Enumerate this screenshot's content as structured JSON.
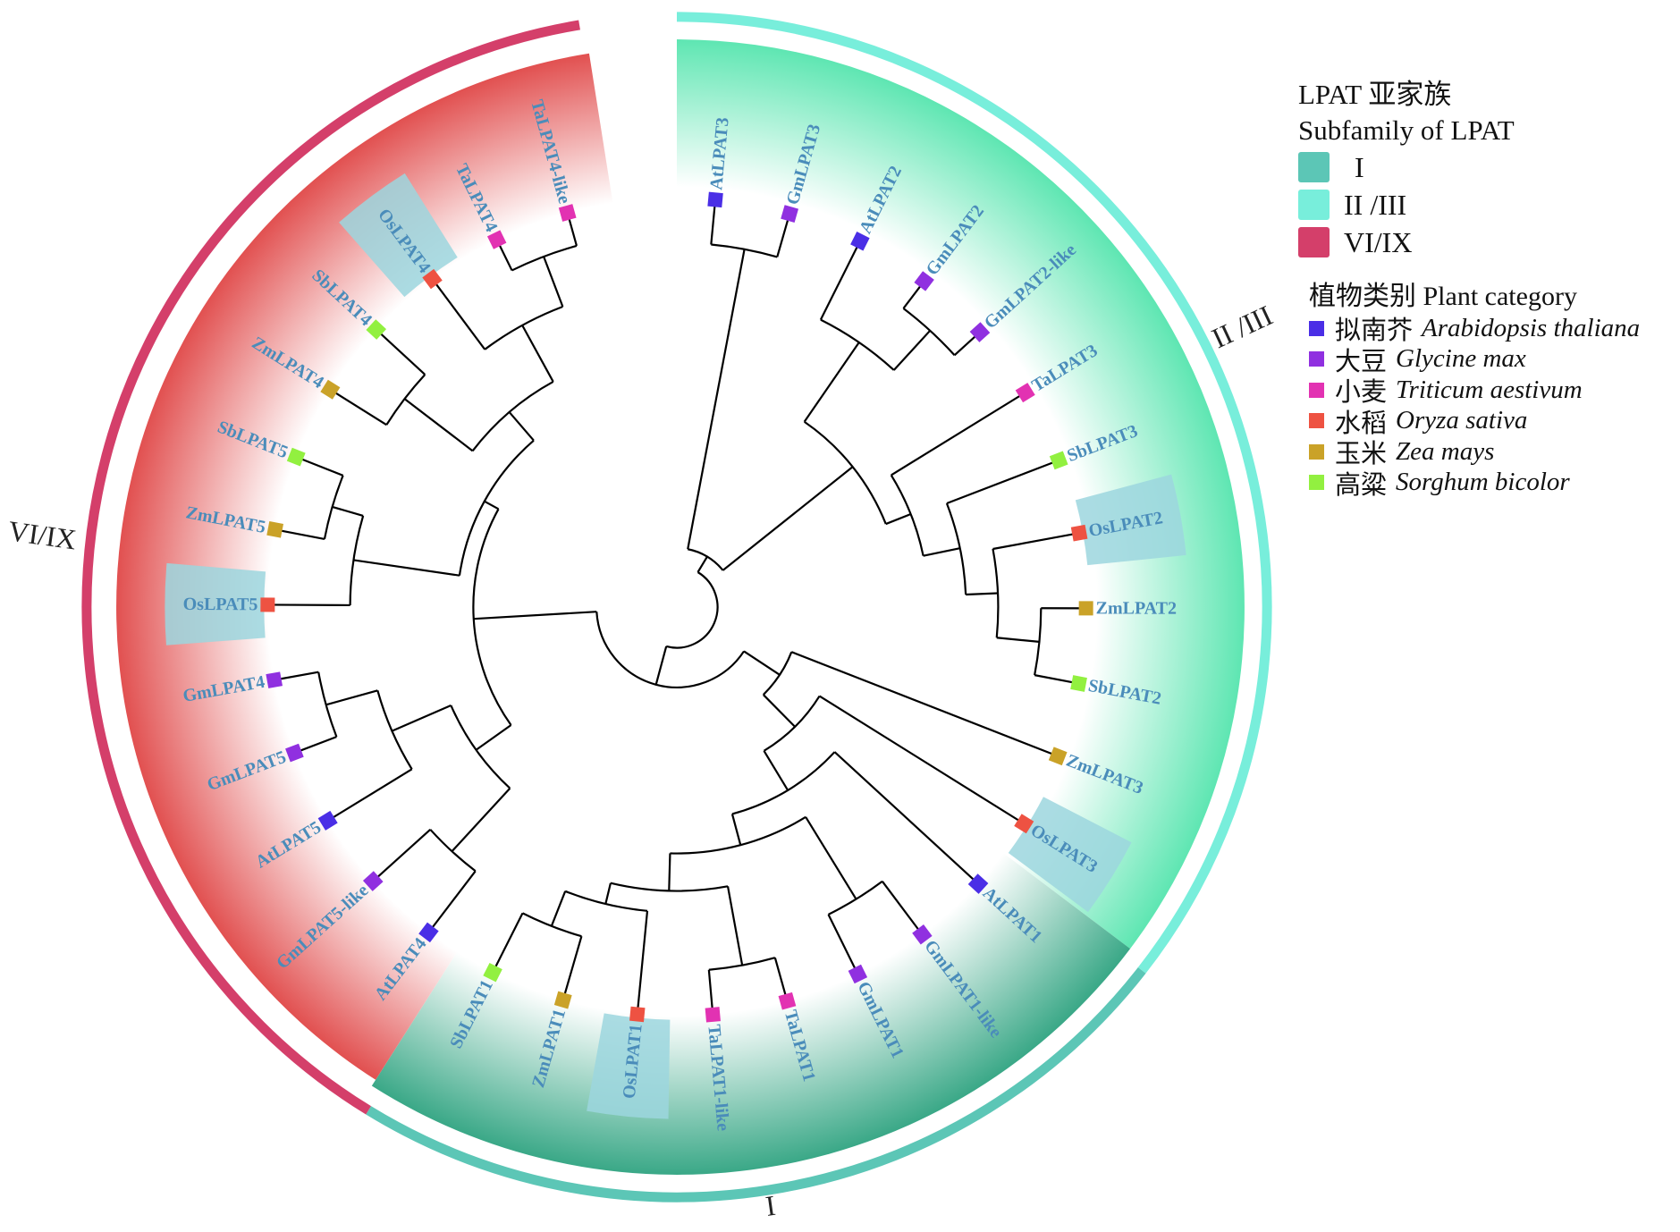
{
  "legend": {
    "subfamily_title_cn": "LPAT 亚家族",
    "subfamily_title_en": "Subfamily of LPAT",
    "subfamilies": [
      {
        "label": "I",
        "color": "#5cc6b6"
      },
      {
        "label": "II /III",
        "color": "#78eedb"
      },
      {
        "label": "VI/IX",
        "color": "#d43f6a"
      }
    ],
    "category_title": "植物类别 Plant category",
    "species": [
      {
        "code": "At",
        "cn": "拟南芥",
        "latin": "Arabidopsis thaliana",
        "color": "#4a2ee6"
      },
      {
        "code": "Gm",
        "cn": "大豆",
        "latin": "Glycine max",
        "color": "#9030e0"
      },
      {
        "code": "Ta",
        "cn": "小麦",
        "latin": "Triticum aestivum",
        "color": "#e232b2"
      },
      {
        "code": "Os",
        "cn": "水稻",
        "latin": "Oryza sativa",
        "color": "#ee5242"
      },
      {
        "code": "Zm",
        "cn": "玉米",
        "latin": "Zea mays",
        "color": "#caa228"
      },
      {
        "code": "Sb",
        "cn": "高粱",
        "latin": "Sorghum bicolor",
        "color": "#92f040"
      }
    ]
  },
  "clade_labels": {
    "I": "I",
    "II_III": "II /III",
    "VI_IX": "VI/IX"
  },
  "clade_colors": {
    "I": "#3aa887",
    "II_III": "#5ee6b2",
    "VI_IX": "#e04848",
    "highlight": "#9cd6de"
  },
  "leaves": [
    {
      "name": "AtLPAT3",
      "sp": "At"
    },
    {
      "name": "GmLPAT3",
      "sp": "Gm"
    },
    {
      "name": "AtLPAT2",
      "sp": "At"
    },
    {
      "name": "GmLPAT2",
      "sp": "Gm"
    },
    {
      "name": "GmLPAT2-like",
      "sp": "Gm"
    },
    {
      "name": "TaLPAT3",
      "sp": "Ta"
    },
    {
      "name": "SbLPAT3",
      "sp": "Sb"
    },
    {
      "name": "OsLPAT2",
      "sp": "Os"
    },
    {
      "name": "ZmLPAT2",
      "sp": "Zm"
    },
    {
      "name": "SbLPAT2",
      "sp": "Sb"
    },
    {
      "name": "ZmLPAT3",
      "sp": "Zm"
    },
    {
      "name": "OsLPAT3",
      "sp": "Os"
    },
    {
      "name": "AtLPAT1",
      "sp": "At"
    },
    {
      "name": "GmLPAT1-like",
      "sp": "Gm"
    },
    {
      "name": "GmLPAT1",
      "sp": "Gm"
    },
    {
      "name": "TaLPAT1",
      "sp": "Ta"
    },
    {
      "name": "TaLPAT1-like",
      "sp": "Ta"
    },
    {
      "name": "OsLPAT1",
      "sp": "Os"
    },
    {
      "name": "ZmLPAT1",
      "sp": "Zm"
    },
    {
      "name": "SbLPAT1",
      "sp": "Sb"
    },
    {
      "name": "AtLPAT4",
      "sp": "At"
    },
    {
      "name": "GmLPAT5-like",
      "sp": "Gm"
    },
    {
      "name": "AtLPAT5",
      "sp": "At"
    },
    {
      "name": "GmLPAT5",
      "sp": "Gm"
    },
    {
      "name": "GmLPAT4",
      "sp": "Gm"
    },
    {
      "name": "OsLPAT5",
      "sp": "Os"
    },
    {
      "name": "ZmLPAT5",
      "sp": "Zm"
    },
    {
      "name": "SbLPAT5",
      "sp": "Sb"
    },
    {
      "name": "ZmLPAT4",
      "sp": "Zm"
    },
    {
      "name": "SbLPAT4",
      "sp": "Sb"
    },
    {
      "name": "OsLPAT4",
      "sp": "Os"
    },
    {
      "name": "TaLPAT4",
      "sp": "Ta"
    },
    {
      "name": "TaLPAT4-like",
      "sp": "Ta"
    }
  ]
}
